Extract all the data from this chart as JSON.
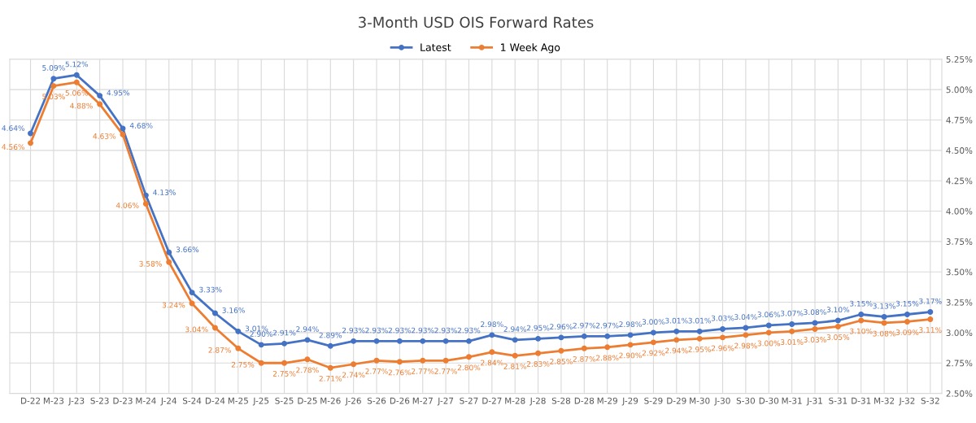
{
  "chart_data": {
    "type": "line",
    "title": "3-Month USD OIS Forward Rates",
    "categories": [
      "D-22",
      "M-23",
      "J-23",
      "S-23",
      "D-23",
      "M-24",
      "J-24",
      "S-24",
      "D-24",
      "M-25",
      "J-25",
      "S-25",
      "D-25",
      "M-26",
      "J-26",
      "S-26",
      "D-26",
      "M-27",
      "J-27",
      "S-27",
      "D-27",
      "M-28",
      "J-28",
      "S-28",
      "D-28",
      "M-29",
      "J-29",
      "S-29",
      "D-29",
      "M-30",
      "J-30",
      "S-30",
      "D-30",
      "M-31",
      "J-31",
      "S-31",
      "D-31",
      "M-32",
      "J-32",
      "S-32"
    ],
    "series": [
      {
        "name": "Latest",
        "color": "#4472c4",
        "values": [
          4.64,
          5.09,
          5.12,
          4.95,
          4.68,
          4.13,
          3.66,
          3.33,
          3.16,
          3.01,
          2.9,
          2.91,
          2.94,
          2.89,
          2.93,
          2.93,
          2.93,
          2.93,
          2.93,
          2.93,
          2.98,
          2.94,
          2.95,
          2.96,
          2.97,
          2.97,
          2.98,
          3.0,
          3.01,
          3.01,
          3.03,
          3.04,
          3.06,
          3.07,
          3.08,
          3.1,
          3.15,
          3.13,
          3.15,
          3.17
        ],
        "value_labels": [
          "4.64%",
          "5.09%",
          "5.12%",
          "4.95%",
          "4.68%",
          "4.13%",
          "3.66%",
          "3.33%",
          "3.16%",
          "3.01%",
          "2.90%",
          "2.91%",
          "2.94%",
          "2.89%",
          "2.93%",
          "2.93%",
          "2.93%",
          "2.93%",
          "2.93%",
          "2.93%",
          "2.98%",
          "2.94%",
          "2.95%",
          "2.96%",
          "2.97%",
          "2.97%",
          "2.98%",
          "3.00%",
          "3.01%",
          "3.01%",
          "3.03%",
          "3.04%",
          "3.06%",
          "3.07%",
          "3.08%",
          "3.10%",
          "3.15%",
          "3.13%",
          "3.15%",
          "3.17%"
        ]
      },
      {
        "name": "1 Week Ago",
        "color": "#ed7d31",
        "values": [
          4.56,
          5.03,
          5.06,
          4.88,
          4.63,
          4.06,
          3.58,
          3.24,
          3.04,
          2.87,
          2.75,
          2.75,
          2.78,
          2.71,
          2.74,
          2.77,
          2.76,
          2.77,
          2.77,
          2.8,
          2.84,
          2.81,
          2.83,
          2.85,
          2.87,
          2.88,
          2.9,
          2.92,
          2.94,
          2.95,
          2.96,
          2.98,
          3.0,
          3.01,
          3.03,
          3.05,
          3.1,
          3.08,
          3.09,
          3.11
        ],
        "value_labels": [
          "4.56%",
          "5.03%",
          "5.06%",
          "4.88%",
          "4.63%",
          "4.06%",
          "3.58%",
          "3.24%",
          "3.04%",
          "2.87%",
          "2.75%",
          "2.75%",
          "2.78%",
          "2.71%",
          "2.74%",
          "2.77%",
          "2.76%",
          "2.77%",
          "2.77%",
          "2.80%",
          "2.84%",
          "2.81%",
          "2.83%",
          "2.85%",
          "2.87%",
          "2.88%",
          "2.90%",
          "2.92%",
          "2.94%",
          "2.95%",
          "2.96%",
          "2.98%",
          "3.00%",
          "3.01%",
          "3.03%",
          "3.05%",
          "3.10%",
          "3.08%",
          "3.09%",
          "3.11%"
        ]
      }
    ],
    "ylim": [
      2.5,
      5.25
    ],
    "yticks": [
      {
        "value": 2.5,
        "label": "2.50%"
      },
      {
        "value": 2.75,
        "label": "2.75%"
      },
      {
        "value": 3.0,
        "label": "3.00%"
      },
      {
        "value": 3.25,
        "label": "3.25%"
      },
      {
        "value": 3.5,
        "label": "3.50%"
      },
      {
        "value": 3.75,
        "label": "3.75%"
      },
      {
        "value": 4.0,
        "label": "4.00%"
      },
      {
        "value": 4.25,
        "label": "4.25%"
      },
      {
        "value": 4.5,
        "label": "4.50%"
      },
      {
        "value": 4.75,
        "label": "4.75%"
      },
      {
        "value": 5.0,
        "label": "5.00%"
      },
      {
        "value": 5.25,
        "label": "5.25%"
      }
    ],
    "grid": true,
    "legend": "top",
    "marker": "circle",
    "line_style": "solid"
  }
}
